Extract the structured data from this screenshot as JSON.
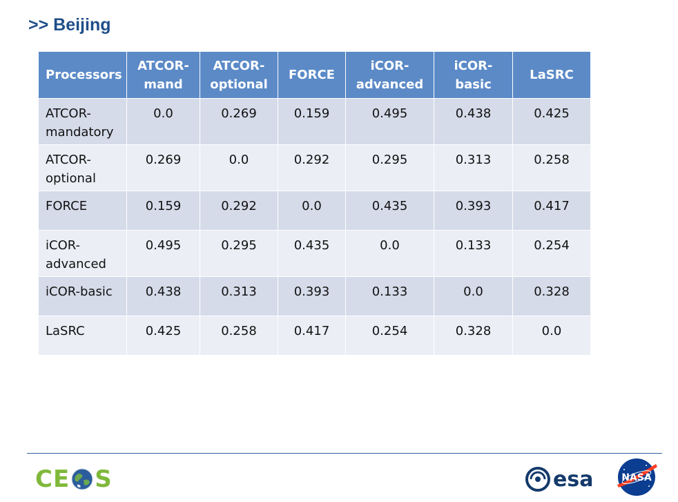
{
  "slide": {
    "title": ">> Beijing"
  },
  "table": {
    "headers": [
      "Processors",
      [
        "ATCOR-",
        "mand"
      ],
      [
        "ATCOR-",
        "optional"
      ],
      "FORCE",
      [
        "iCOR-",
        "advanced"
      ],
      [
        "iCOR-",
        "basic"
      ],
      "LaSRC"
    ],
    "rows": [
      {
        "label": [
          "ATCOR-",
          "mandatory"
        ],
        "values": [
          "0.0",
          "0.269",
          "0.159",
          "0.495",
          "0.438",
          "0.425"
        ]
      },
      {
        "label": [
          "ATCOR-",
          "optional"
        ],
        "values": [
          "0.269",
          "0.0",
          "0.292",
          "0.295",
          "0.313",
          "0.258"
        ]
      },
      {
        "label": [
          "FORCE"
        ],
        "values": [
          "0.159",
          "0.292",
          "0.0",
          "0.435",
          "0.393",
          "0.417"
        ]
      },
      {
        "label": [
          "iCOR-",
          "advanced"
        ],
        "values": [
          "0.495",
          "0.295",
          "0.435",
          "0.0",
          "0.133",
          "0.254"
        ]
      },
      {
        "label": [
          "iCOR-basic"
        ],
        "values": [
          "0.438",
          "0.313",
          "0.393",
          "0.133",
          "0.0",
          "0.328"
        ]
      },
      {
        "label": [
          "LaSRC"
        ],
        "values": [
          "0.425",
          "0.258",
          "0.417",
          "0.254",
          "0.328",
          "0.0"
        ]
      }
    ]
  },
  "footer": {
    "ceos_logo": {
      "text_left": "CE",
      "text_right": "S",
      "icon": "globe-icon",
      "color": "#7fb83a"
    },
    "esa_logo": {
      "text": "esa",
      "icon": "esa-swirl-icon",
      "color": "#143a6b"
    },
    "nasa_logo": {
      "text": "NASA",
      "icon": "nasa-meatball-icon",
      "color": "#0b3d91"
    }
  }
}
